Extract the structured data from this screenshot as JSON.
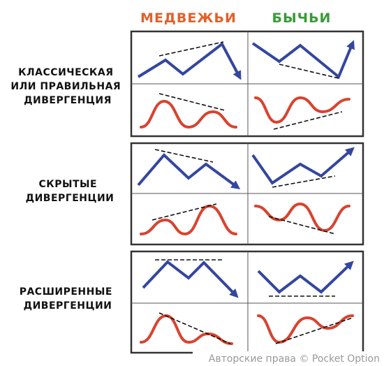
{
  "header": {
    "columns": [
      "МЕДВЕЖЬИ",
      "БЫЧЬИ"
    ]
  },
  "rows": [
    {
      "label": [
        "КЛАССИЧЕСКАЯ",
        "ИЛИ ПРАВИЛЬНАЯ",
        "ДИВЕРГЕНЦИЯ"
      ]
    },
    {
      "label": [
        "СКРЫТЫЕ",
        "ДИВЕРГЕНЦИИ"
      ]
    },
    {
      "label": [
        "РАСШИРЕННЫЕ",
        "ДИВЕРГЕНЦИИ"
      ]
    }
  ],
  "watermark": "Авторские права © Pocket Option"
}
